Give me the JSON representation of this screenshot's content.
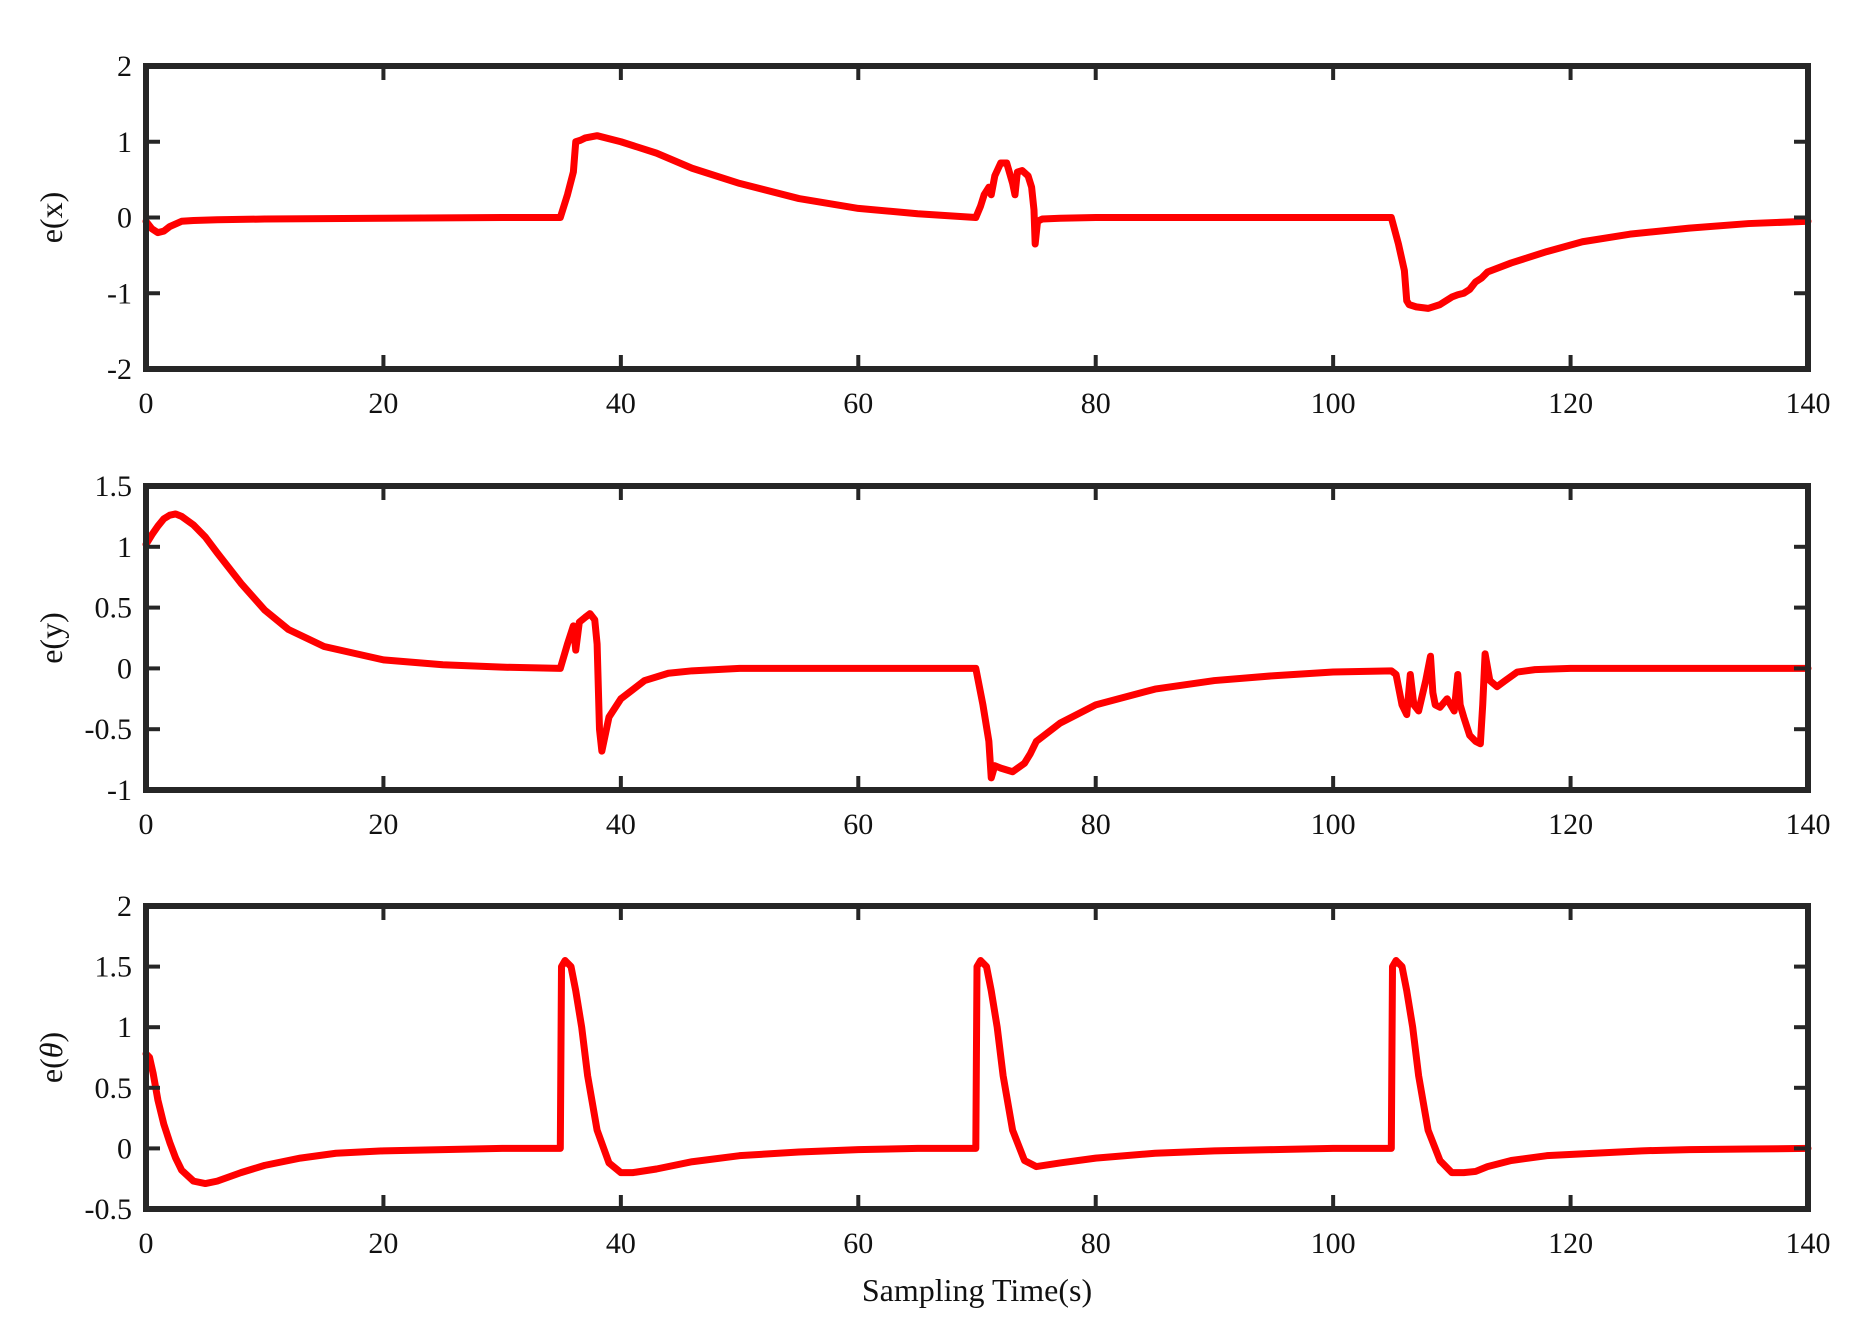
{
  "chart_data": [
    {
      "type": "line",
      "ylabel": "e(x)",
      "xlabel": "",
      "xlim": [
        0,
        140
      ],
      "ylim": [
        -2,
        2
      ],
      "xticks": [
        0,
        20,
        40,
        60,
        80,
        100,
        120,
        140
      ],
      "xtick_labels": [
        "0",
        "20",
        "40",
        "60",
        "80",
        "100",
        "120",
        "140"
      ],
      "yticks": [
        -2,
        -1,
        0,
        1,
        2
      ],
      "ytick_labels": [
        "-2",
        "-1",
        "0",
        "1",
        "2"
      ],
      "grid": false,
      "series": [
        {
          "color": "#ff0000",
          "x": [
            0,
            0.5,
            1,
            1.5,
            2,
            3,
            4,
            6,
            10,
            20,
            30,
            34.9,
            35.5,
            36,
            36.2,
            36.6,
            37,
            38,
            40,
            43,
            46,
            50,
            55,
            60,
            65,
            69.9,
            70.3,
            70.6,
            71,
            71.2,
            71.5,
            72,
            72.5,
            73,
            73.2,
            73.4,
            73.8,
            74.3,
            74.6,
            74.8,
            74.9,
            75.1,
            75.5,
            77,
            80,
            90,
            100,
            104.9,
            105.5,
            106,
            106.2,
            106.4,
            107,
            108,
            109,
            110,
            110.5,
            111,
            111.5,
            112,
            112.5,
            113,
            115,
            118,
            121,
            125,
            130,
            135,
            140
          ],
          "y": [
            -0.05,
            -0.15,
            -0.2,
            -0.18,
            -0.12,
            -0.05,
            -0.04,
            -0.03,
            -0.02,
            -0.01,
            0,
            0,
            0.3,
            0.6,
            1.0,
            1.02,
            1.05,
            1.08,
            1.0,
            0.85,
            0.65,
            0.45,
            0.25,
            0.12,
            0.05,
            0,
            0.15,
            0.3,
            0.4,
            0.3,
            0.55,
            0.72,
            0.72,
            0.45,
            0.3,
            0.6,
            0.62,
            0.55,
            0.4,
            0.1,
            -0.35,
            -0.05,
            -0.02,
            -0.01,
            0,
            0,
            0,
            0,
            -0.35,
            -0.7,
            -1.1,
            -1.15,
            -1.18,
            -1.2,
            -1.15,
            -1.05,
            -1.02,
            -1.0,
            -0.95,
            -0.85,
            -0.8,
            -0.72,
            -0.6,
            -0.45,
            -0.32,
            -0.22,
            -0.14,
            -0.08,
            -0.05
          ]
        }
      ]
    },
    {
      "type": "line",
      "ylabel": "e(y)",
      "xlabel": "",
      "xlim": [
        0,
        140
      ],
      "ylim": [
        -1,
        1.5
      ],
      "xticks": [
        0,
        20,
        40,
        60,
        80,
        100,
        120,
        140
      ],
      "xtick_labels": [
        "0",
        "20",
        "40",
        "60",
        "80",
        "100",
        "120",
        "140"
      ],
      "yticks": [
        -1,
        -0.5,
        0,
        0.5,
        1,
        1.5
      ],
      "ytick_labels": [
        "-1",
        "-0.5",
        "0",
        "0.5",
        "1",
        "1.5"
      ],
      "grid": false,
      "series": [
        {
          "color": "#ff0000",
          "x": [
            0,
            0.5,
            1,
            1.5,
            2,
            2.5,
            3,
            4,
            5,
            6,
            8,
            10,
            12,
            15,
            20,
            25,
            30,
            34.9,
            35.5,
            36,
            36.2,
            36.5,
            37,
            37.4,
            37.8,
            38,
            38.2,
            38.4,
            39,
            40,
            42,
            44,
            46,
            50,
            55,
            60,
            65,
            69.9,
            70.5,
            71,
            71.2,
            71.5,
            72,
            73,
            74,
            74.5,
            75,
            77,
            80,
            85,
            90,
            95,
            100,
            104.9,
            105.3,
            105.8,
            106.2,
            106.5,
            106.8,
            107.2,
            107.8,
            108.2,
            108.4,
            108.6,
            109,
            109.6,
            110.2,
            110.5,
            110.7,
            111,
            111.5,
            112,
            112.4,
            112.6,
            112.8,
            113.2,
            113.8,
            114.5,
            115.5,
            117,
            120,
            125,
            130,
            135,
            140
          ],
          "y": [
            1.02,
            1.1,
            1.17,
            1.23,
            1.26,
            1.27,
            1.25,
            1.18,
            1.08,
            0.95,
            0.7,
            0.48,
            0.32,
            0.18,
            0.07,
            0.03,
            0.01,
            0,
            0.2,
            0.35,
            0.15,
            0.38,
            0.42,
            0.45,
            0.4,
            0.2,
            -0.5,
            -0.68,
            -0.4,
            -0.25,
            -0.1,
            -0.04,
            -0.02,
            0,
            0,
            0,
            0,
            0,
            -0.3,
            -0.6,
            -0.9,
            -0.8,
            -0.82,
            -0.85,
            -0.78,
            -0.7,
            -0.6,
            -0.45,
            -0.3,
            -0.17,
            -0.1,
            -0.06,
            -0.03,
            -0.02,
            -0.05,
            -0.3,
            -0.38,
            -0.05,
            -0.3,
            -0.35,
            -0.1,
            0.1,
            -0.2,
            -0.3,
            -0.32,
            -0.25,
            -0.35,
            -0.05,
            -0.3,
            -0.4,
            -0.55,
            -0.6,
            -0.62,
            -0.3,
            0.12,
            -0.1,
            -0.15,
            -0.1,
            -0.03,
            -0.01,
            0,
            0,
            0,
            0,
            0
          ]
        }
      ]
    },
    {
      "type": "line",
      "ylabel": "e(θ)",
      "xlabel": "Sampling Time(s)",
      "xlim": [
        0,
        140
      ],
      "ylim": [
        -0.5,
        2
      ],
      "xticks": [
        0,
        20,
        40,
        60,
        80,
        100,
        120,
        140
      ],
      "xtick_labels": [
        "0",
        "20",
        "40",
        "60",
        "80",
        "100",
        "120",
        "140"
      ],
      "yticks": [
        -0.5,
        0,
        0.5,
        1,
        1.5,
        2
      ],
      "ytick_labels": [
        "-0.5",
        "0",
        "0.5",
        "1",
        "1.5",
        "2"
      ],
      "grid": false,
      "series": [
        {
          "color": "#ff0000",
          "x": [
            0,
            0.3,
            0.6,
            1,
            1.5,
            2,
            2.5,
            3,
            4,
            5,
            6,
            8,
            10,
            13,
            16,
            20,
            25,
            30,
            34.9,
            35,
            35.3,
            35.8,
            36.2,
            36.7,
            37.2,
            38,
            39,
            40,
            41,
            43,
            46,
            50,
            55,
            60,
            65,
            69.9,
            70,
            70.3,
            70.8,
            71.2,
            71.7,
            72.2,
            73,
            74,
            75,
            77,
            80,
            85,
            90,
            95,
            100,
            104.9,
            105,
            105.3,
            105.8,
            106.2,
            106.7,
            107.2,
            108,
            109,
            110,
            111,
            112,
            113,
            115,
            118,
            122,
            126,
            130,
            135,
            140
          ],
          "y": [
            0.78,
            0.75,
            0.62,
            0.4,
            0.2,
            0.05,
            -0.08,
            -0.18,
            -0.27,
            -0.29,
            -0.27,
            -0.2,
            -0.14,
            -0.08,
            -0.04,
            -0.02,
            -0.01,
            0,
            0,
            1.5,
            1.55,
            1.5,
            1.3,
            1.0,
            0.6,
            0.15,
            -0.12,
            -0.2,
            -0.2,
            -0.17,
            -0.11,
            -0.06,
            -0.03,
            -0.01,
            0,
            0,
            1.5,
            1.55,
            1.5,
            1.3,
            1.0,
            0.6,
            0.15,
            -0.1,
            -0.15,
            -0.12,
            -0.08,
            -0.04,
            -0.02,
            -0.01,
            0,
            0,
            1.5,
            1.55,
            1.5,
            1.3,
            1.0,
            0.6,
            0.15,
            -0.1,
            -0.2,
            -0.2,
            -0.19,
            -0.15,
            -0.1,
            -0.06,
            -0.04,
            -0.02,
            -0.01,
            -0.005,
            0
          ]
        }
      ]
    }
  ]
}
